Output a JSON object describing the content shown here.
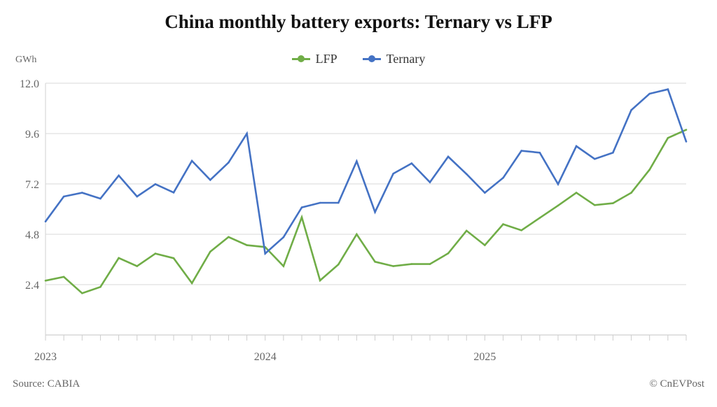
{
  "chart_data": {
    "type": "line",
    "title": "China monthly battery exports: Ternary vs LFP",
    "ylabel": "GWh",
    "xlabel": "",
    "ylim": [
      0,
      12.0
    ],
    "yticks": [
      "2.4",
      "4.8",
      "7.2",
      "9.6",
      "12.0"
    ],
    "ytick_values": [
      2.4,
      4.8,
      7.2,
      9.6,
      12.0
    ],
    "xtick_labels": [
      {
        "label": "2023",
        "month_index": 0
      },
      {
        "label": "2024",
        "month_index": 12
      },
      {
        "label": "2025",
        "month_index": 24
      }
    ],
    "x": [
      "2023-01",
      "2023-02",
      "2023-03",
      "2023-04",
      "2023-05",
      "2023-06",
      "2023-07",
      "2023-08",
      "2023-09",
      "2023-10",
      "2023-11",
      "2023-12",
      "2024-01",
      "2024-02",
      "2024-03",
      "2024-04",
      "2024-05",
      "2024-06",
      "2024-07",
      "2024-08",
      "2024-09",
      "2024-10",
      "2024-11",
      "2024-12",
      "2025-01",
      "2025-02",
      "2025-03",
      "2025-04",
      "2025-05",
      "2025-06",
      "2025-07",
      "2025-08",
      "2025-09",
      "2025-10",
      "2025-11",
      "2025-12"
    ],
    "grid": true,
    "legend": "top-center",
    "series": [
      {
        "name": "LFP",
        "color": "#70ad47",
        "values": [
          2.59,
          2.77,
          1.99,
          2.29,
          3.67,
          3.28,
          3.88,
          3.66,
          2.47,
          3.97,
          4.67,
          4.28,
          4.19,
          3.28,
          5.61,
          2.6,
          3.36,
          4.8,
          3.49,
          3.28,
          3.38,
          3.38,
          3.89,
          4.97,
          4.28,
          5.28,
          4.99,
          5.58,
          6.17,
          6.78,
          6.19,
          6.28,
          6.78,
          7.88,
          9.39,
          9.78
        ]
      },
      {
        "name": "Ternary",
        "color": "#4472c4",
        "values": [
          5.41,
          6.6,
          6.78,
          6.5,
          7.6,
          6.6,
          7.19,
          6.79,
          8.3,
          7.39,
          8.22,
          9.6,
          3.88,
          4.66,
          6.08,
          6.3,
          6.3,
          8.28,
          5.86,
          7.69,
          8.18,
          7.28,
          8.5,
          7.67,
          6.78,
          7.49,
          8.78,
          8.69,
          7.19,
          9.0,
          8.39,
          8.69,
          10.72,
          11.5,
          11.71,
          9.22
        ]
      }
    ]
  },
  "footer": {
    "source": "Source: CABIA",
    "credit": "© CnEVPost"
  }
}
